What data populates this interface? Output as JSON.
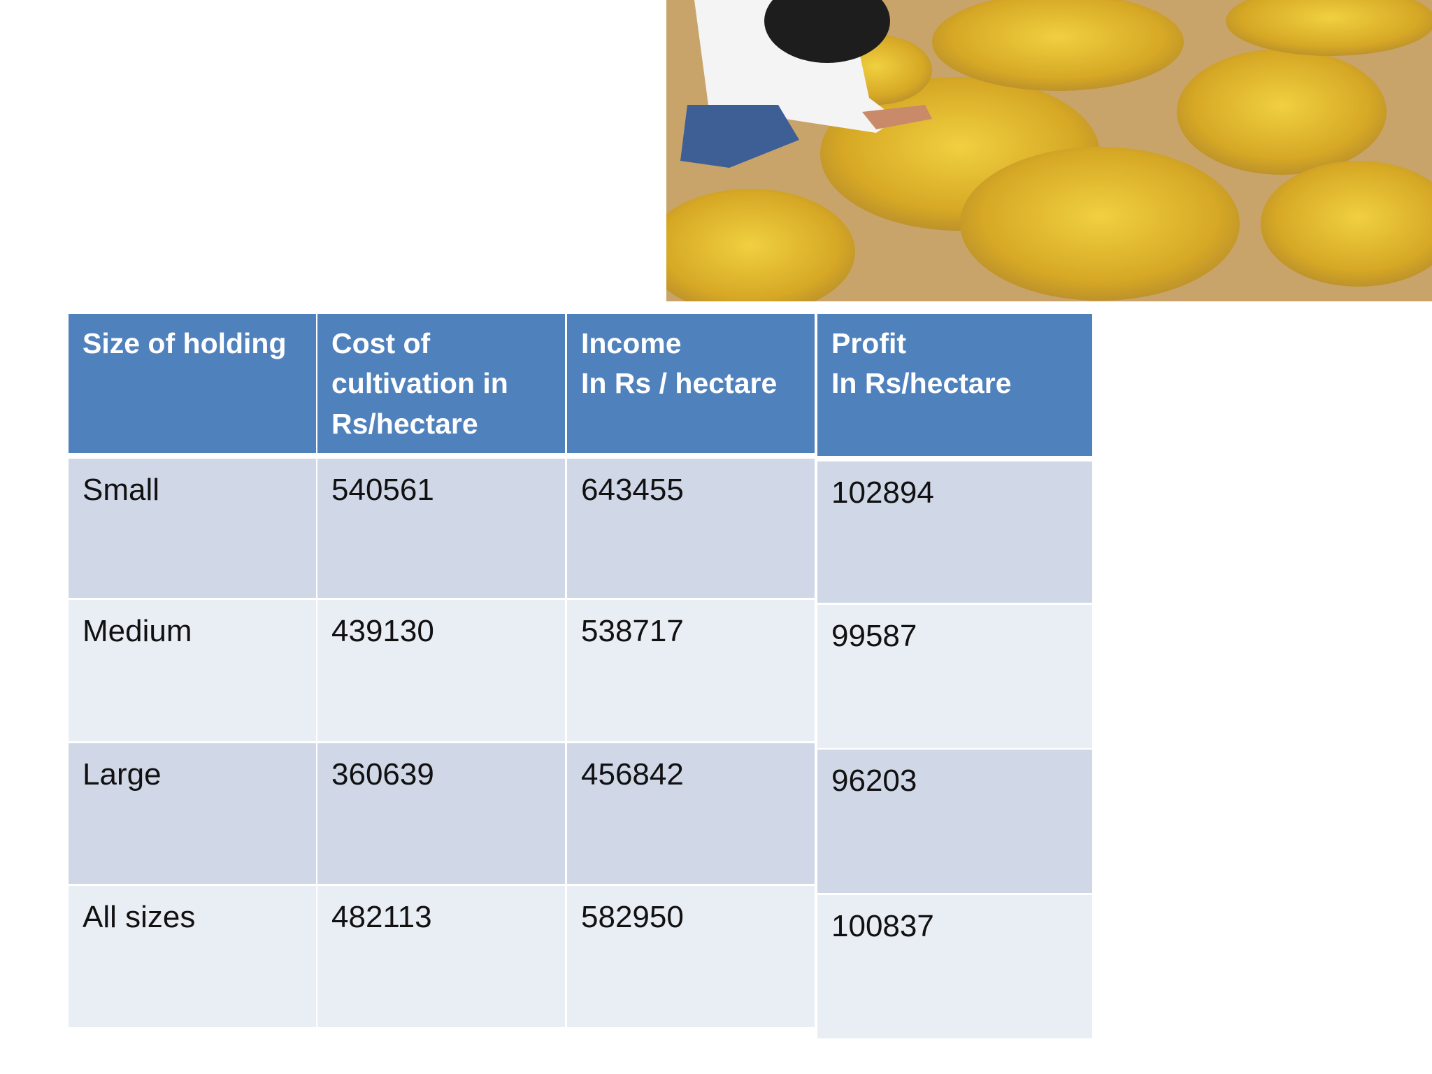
{
  "table": {
    "header": [
      "Size of holding",
      "Cost of cultivation in Rs/hectare",
      "Income\nIn Rs / hectare",
      "Profit\nIn Rs/hectare"
    ],
    "rows": [
      [
        "Small",
        540561,
        643455,
        102894
      ],
      [
        "Medium",
        439130,
        538717,
        99587
      ],
      [
        "Large",
        360639,
        456842,
        96203
      ],
      [
        "All sizes",
        482113,
        582950,
        100837
      ]
    ]
  }
}
